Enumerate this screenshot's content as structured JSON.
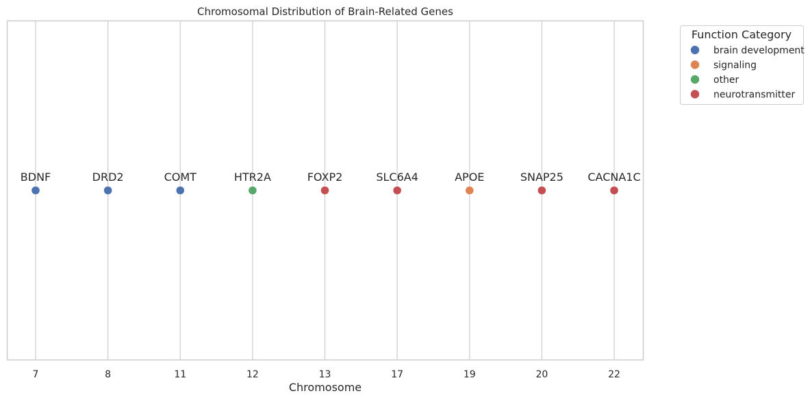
{
  "chart_data": {
    "type": "scatter",
    "title": "Chromosomal Distribution of Brain-Related Genes",
    "xlabel": "Chromosome",
    "ylabel": "",
    "categories": [
      "7",
      "8",
      "11",
      "12",
      "13",
      "17",
      "19",
      "20",
      "22"
    ],
    "grid": "vertical",
    "legend": {
      "title": "Function Category",
      "placement": "outside-right-top",
      "entries": [
        {
          "name": "brain development",
          "color": "#4c72b0"
        },
        {
          "name": "signaling",
          "color": "#dd8452"
        },
        {
          "name": "other",
          "color": "#55a868"
        },
        {
          "name": "neurotransmitter",
          "color": "#c44e52"
        }
      ]
    },
    "points": [
      {
        "x": "7",
        "gene": "BDNF",
        "category": "brain development"
      },
      {
        "x": "8",
        "gene": "DRD2",
        "category": "brain development"
      },
      {
        "x": "11",
        "gene": "COMT",
        "category": "brain development"
      },
      {
        "x": "12",
        "gene": "HTR2A",
        "category": "other"
      },
      {
        "x": "13",
        "gene": "FOXP2",
        "category": "neurotransmitter"
      },
      {
        "x": "17",
        "gene": "SLC6A4",
        "category": "neurotransmitter"
      },
      {
        "x": "19",
        "gene": "APOE",
        "category": "signaling"
      },
      {
        "x": "20",
        "gene": "SNAP25",
        "category": "neurotransmitter"
      },
      {
        "x": "22",
        "gene": "CACNA1C",
        "category": "neurotransmitter"
      }
    ]
  }
}
